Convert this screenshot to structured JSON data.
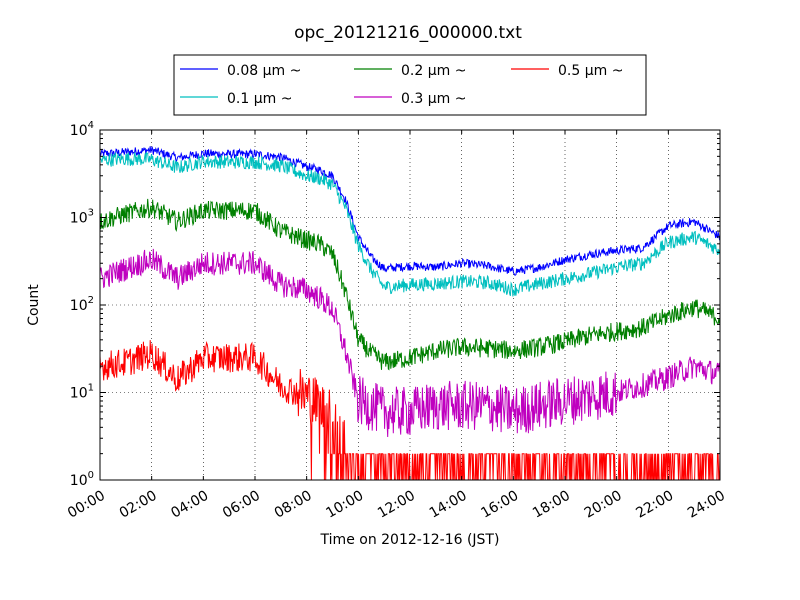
{
  "chart_data": {
    "type": "line",
    "title": "opc_20121216_000000.txt",
    "xlabel": "Time on 2012-12-16 (JST)",
    "ylabel": "Count",
    "y_scale": "log",
    "ylim": [
      1,
      10000
    ],
    "xlim_hours": [
      0,
      24
    ],
    "x_tick_labels": [
      "00:00",
      "02:00",
      "04:00",
      "06:00",
      "08:00",
      "10:00",
      "12:00",
      "14:00",
      "16:00",
      "18:00",
      "20:00",
      "22:00",
      "24:00"
    ],
    "y_tick_labels": [
      {
        "base": "10",
        "exp": "0"
      },
      {
        "base": "10",
        "exp": "1"
      },
      {
        "base": "10",
        "exp": "2"
      },
      {
        "base": "10",
        "exp": "3"
      },
      {
        "base": "10",
        "exp": "4"
      }
    ],
    "grid": true,
    "legend_position": "top-center",
    "series": [
      {
        "name": "0.08 μm ~",
        "color": "#0000ff",
        "x": [
          0,
          1,
          2,
          3,
          4,
          5,
          6,
          7,
          8,
          8.5,
          9,
          9.5,
          10,
          10.5,
          11,
          12,
          13,
          14,
          15,
          16,
          17,
          18,
          19,
          20,
          21,
          22,
          23,
          24
        ],
        "y": [
          5300,
          5600,
          5900,
          4800,
          5400,
          5300,
          5300,
          4900,
          3800,
          3500,
          3000,
          1600,
          600,
          350,
          260,
          280,
          270,
          300,
          280,
          240,
          270,
          330,
          380,
          420,
          450,
          800,
          900,
          600
        ]
      },
      {
        "name": "0.1 μm ~",
        "color": "#00bfbf",
        "x": [
          0,
          1,
          2,
          3,
          4,
          5,
          6,
          7,
          8,
          8.5,
          9,
          9.5,
          10,
          10.5,
          11,
          12,
          13,
          14,
          15,
          16,
          17,
          18,
          19,
          20,
          21,
          22,
          23,
          24
        ],
        "y": [
          4500,
          4700,
          4600,
          3700,
          4400,
          4300,
          4300,
          3900,
          3000,
          2800,
          2400,
          1300,
          480,
          250,
          160,
          170,
          175,
          185,
          180,
          150,
          175,
          200,
          230,
          270,
          300,
          520,
          600,
          420
        ]
      },
      {
        "name": "0.2 μm ~",
        "color": "#008000",
        "x": [
          0,
          1,
          2,
          3,
          4,
          5,
          6,
          7,
          8,
          8.5,
          9,
          9.5,
          10,
          10.5,
          11,
          12,
          13,
          14,
          15,
          16,
          17,
          18,
          19,
          20,
          21,
          22,
          23,
          24
        ],
        "y": [
          900,
          1100,
          1300,
          900,
          1200,
          1200,
          1200,
          700,
          550,
          500,
          380,
          140,
          40,
          28,
          22,
          25,
          30,
          33,
          32,
          30,
          33,
          38,
          45,
          50,
          55,
          75,
          95,
          70
        ]
      },
      {
        "name": "0.3 μm ~",
        "color": "#bf00bf",
        "x": [
          0,
          1,
          2,
          3,
          4,
          5,
          6,
          7,
          8,
          8.5,
          9,
          9.5,
          10,
          10.5,
          11,
          12,
          13,
          14,
          15,
          16,
          17,
          18,
          19,
          20,
          21,
          22,
          23,
          24
        ],
        "y": [
          200,
          260,
          330,
          200,
          300,
          300,
          300,
          170,
          150,
          120,
          90,
          30,
          8,
          7,
          6,
          6,
          7,
          7,
          7,
          6,
          7,
          8,
          9,
          10,
          12,
          15,
          20,
          16
        ]
      },
      {
        "name": "0.5 μm ~",
        "color": "#ff0000",
        "x": [
          0,
          1,
          2,
          3,
          4,
          5,
          6,
          7,
          8,
          8.5,
          9,
          9.5,
          10,
          10.5,
          11,
          12,
          13,
          14,
          15,
          16,
          17,
          18,
          19,
          20,
          21,
          22,
          23,
          24
        ],
        "y": [
          20,
          22,
          28,
          14,
          25,
          25,
          25,
          12,
          9,
          7,
          5,
          2.5,
          1.6,
          1.5,
          1.4,
          1.4,
          1.5,
          1.5,
          1.5,
          1.4,
          1.5,
          1.5,
          1.6,
          1.7,
          1.7,
          1.8,
          1.9,
          1.8
        ]
      }
    ],
    "legend_order": [
      0,
      2,
      4,
      1,
      3
    ]
  }
}
